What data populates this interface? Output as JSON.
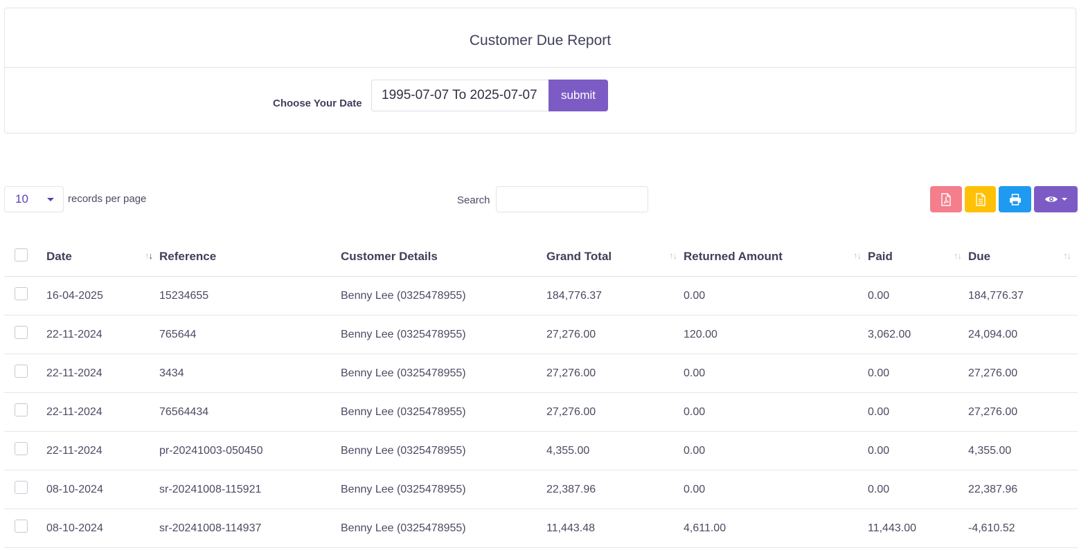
{
  "report": {
    "title": "Customer Due Report",
    "date_label": "Choose Your Date",
    "date_value": "1995-07-07 To 2025-07-07",
    "submit_label": "submit"
  },
  "controls": {
    "per_page_value": "10",
    "per_page_label": "records per page",
    "search_label": "Search",
    "search_value": ""
  },
  "toolbar": {
    "buttons": [
      {
        "name": "pdf-export",
        "icon": "file-pdf-icon",
        "color": "#f47e8c"
      },
      {
        "name": "csv-export",
        "icon": "file-text-icon",
        "color": "#ffc107"
      },
      {
        "name": "print",
        "icon": "printer-icon",
        "color": "#1e9bf0"
      },
      {
        "name": "column-visibility",
        "icon": "eye-icon",
        "color": "#7c5cc4"
      }
    ]
  },
  "table": {
    "columns": [
      "Date",
      "Reference",
      "Customer Details",
      "Grand Total",
      "Returned Amount",
      "Paid",
      "Due"
    ],
    "rows": [
      [
        "16-04-2025",
        "15234655",
        "Benny Lee (0325478955)",
        "184,776.37",
        "0.00",
        "0.00",
        "184,776.37"
      ],
      [
        "22-11-2024",
        "765644",
        "Benny Lee (0325478955)",
        "27,276.00",
        "120.00",
        "3,062.00",
        "24,094.00"
      ],
      [
        "22-11-2024",
        "3434",
        "Benny Lee (0325478955)",
        "27,276.00",
        "0.00",
        "0.00",
        "27,276.00"
      ],
      [
        "22-11-2024",
        "76564434",
        "Benny Lee (0325478955)",
        "27,276.00",
        "0.00",
        "0.00",
        "27,276.00"
      ],
      [
        "22-11-2024",
        "pr-20241003-050450",
        "Benny Lee (0325478955)",
        "4,355.00",
        "0.00",
        "0.00",
        "4,355.00"
      ],
      [
        "08-10-2024",
        "sr-20241008-115921",
        "Benny Lee (0325478955)",
        "22,387.96",
        "0.00",
        "0.00",
        "22,387.96"
      ],
      [
        "08-10-2024",
        "sr-20241008-114937",
        "Benny Lee (0325478955)",
        "11,443.48",
        "4,611.00",
        "11,443.00",
        "-4,610.52"
      ]
    ]
  }
}
